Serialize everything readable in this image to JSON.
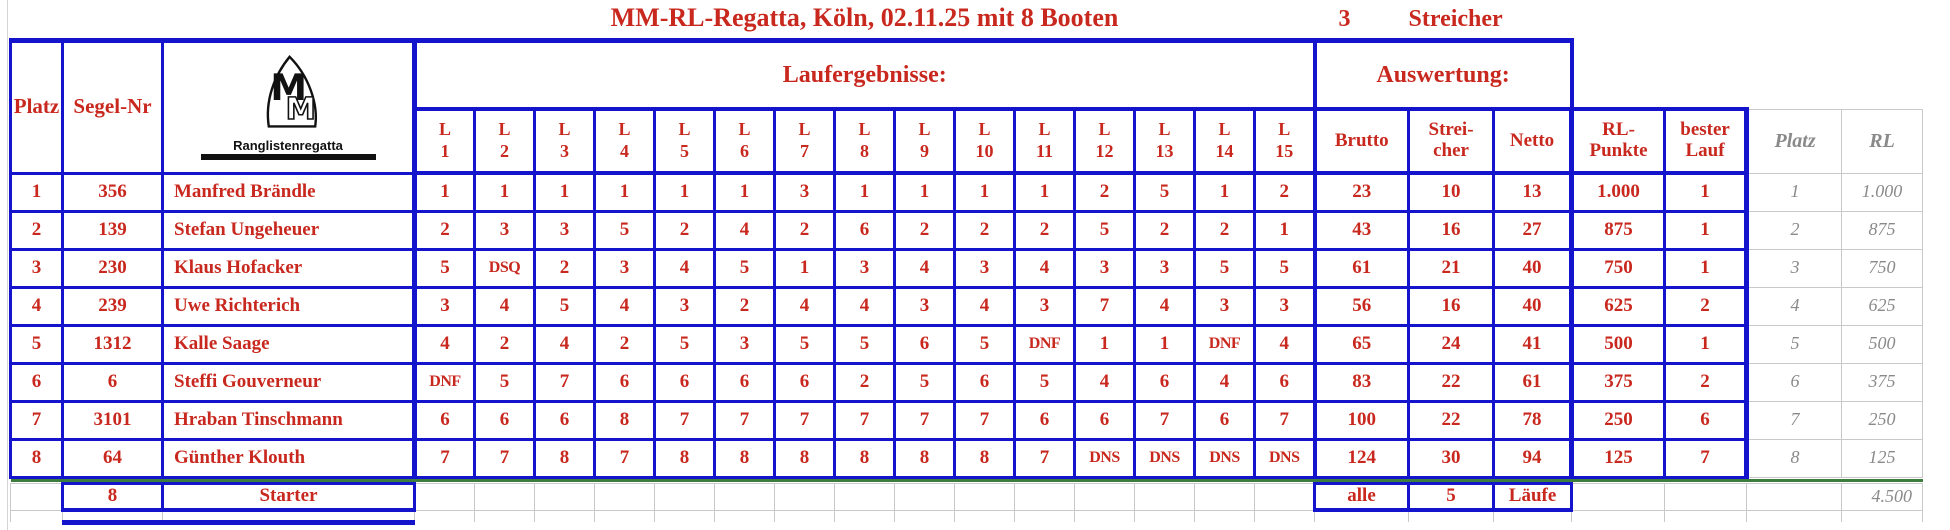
{
  "title": "MM-RL-Regatta, Köln, 02.11.25 mit 8 Booten",
  "streicher_box": {
    "count": "3",
    "label": "Streicher"
  },
  "sections": {
    "laufergebnisse": "Laufergebnisse:",
    "auswertung": "Auswertung:"
  },
  "logo": {
    "m1": "M",
    "m2": "M",
    "caption": "Ranglistenregatta"
  },
  "columns": {
    "platz": "Platz",
    "segel_nr": "Segel-Nr",
    "lauf_prefix": "L",
    "lauf_numbers": [
      "1",
      "2",
      "3",
      "4",
      "5",
      "6",
      "7",
      "8",
      "9",
      "10",
      "11",
      "12",
      "13",
      "14",
      "15"
    ],
    "brutto": "Brutto",
    "streicher_l1": "Strei-",
    "streicher_l2": "cher",
    "netto": "Netto",
    "rl_punkte_l1": "RL-",
    "rl_punkte_l2": "Punkte",
    "bester_lauf_l1": "bester",
    "bester_lauf_l2": "Lauf",
    "platz_gray": "Platz",
    "rl_gray": "RL"
  },
  "rows": [
    {
      "platz": "1",
      "segel_nr": "356",
      "name": "Manfred Brändle",
      "laeufe": [
        "1",
        "1",
        "1",
        "1",
        "1",
        "1",
        "3",
        "1",
        "1",
        "1",
        "1",
        "2",
        "5",
        "1",
        "2"
      ],
      "brutto": "23",
      "streicher": "10",
      "netto": "13",
      "rl_punkte": "1.000",
      "bester_lauf": "1",
      "platz_gray": "1",
      "rl_gray": "1.000"
    },
    {
      "platz": "2",
      "segel_nr": "139",
      "name": "Stefan Ungeheuer",
      "laeufe": [
        "2",
        "3",
        "3",
        "5",
        "2",
        "4",
        "2",
        "6",
        "2",
        "2",
        "2",
        "5",
        "2",
        "2",
        "1"
      ],
      "brutto": "43",
      "streicher": "16",
      "netto": "27",
      "rl_punkte": "875",
      "bester_lauf": "1",
      "platz_gray": "2",
      "rl_gray": "875"
    },
    {
      "platz": "3",
      "segel_nr": "230",
      "name": "Klaus Hofacker",
      "laeufe": [
        "5",
        "DSQ",
        "2",
        "3",
        "4",
        "5",
        "1",
        "3",
        "4",
        "3",
        "4",
        "3",
        "3",
        "5",
        "5"
      ],
      "brutto": "61",
      "streicher": "21",
      "netto": "40",
      "rl_punkte": "750",
      "bester_lauf": "1",
      "platz_gray": "3",
      "rl_gray": "750"
    },
    {
      "platz": "4",
      "segel_nr": "239",
      "name": "Uwe Richterich",
      "laeufe": [
        "3",
        "4",
        "5",
        "4",
        "3",
        "2",
        "4",
        "4",
        "3",
        "4",
        "3",
        "7",
        "4",
        "3",
        "3"
      ],
      "brutto": "56",
      "streicher": "16",
      "netto": "40",
      "rl_punkte": "625",
      "bester_lauf": "2",
      "platz_gray": "4",
      "rl_gray": "625"
    },
    {
      "platz": "5",
      "segel_nr": "1312",
      "name": "Kalle Saage",
      "laeufe": [
        "4",
        "2",
        "4",
        "2",
        "5",
        "3",
        "5",
        "5",
        "6",
        "5",
        "DNF",
        "1",
        "1",
        "DNF",
        "4"
      ],
      "brutto": "65",
      "streicher": "24",
      "netto": "41",
      "rl_punkte": "500",
      "bester_lauf": "1",
      "platz_gray": "5",
      "rl_gray": "500"
    },
    {
      "platz": "6",
      "segel_nr": "6",
      "name": "Steffi Gouverneur",
      "laeufe": [
        "DNF",
        "5",
        "7",
        "6",
        "6",
        "6",
        "6",
        "2",
        "5",
        "6",
        "5",
        "4",
        "6",
        "4",
        "6"
      ],
      "brutto": "83",
      "streicher": "22",
      "netto": "61",
      "rl_punkte": "375",
      "bester_lauf": "2",
      "platz_gray": "6",
      "rl_gray": "375"
    },
    {
      "platz": "7",
      "segel_nr": "3101",
      "name": "Hraban Tinschmann",
      "laeufe": [
        "6",
        "6",
        "6",
        "8",
        "7",
        "7",
        "7",
        "7",
        "7",
        "7",
        "6",
        "6",
        "7",
        "6",
        "7"
      ],
      "brutto": "100",
      "streicher": "22",
      "netto": "78",
      "rl_punkte": "250",
      "bester_lauf": "6",
      "platz_gray": "7",
      "rl_gray": "250"
    },
    {
      "platz": "8",
      "segel_nr": "64",
      "name": "Günther Klouth",
      "laeufe": [
        "7",
        "7",
        "8",
        "7",
        "8",
        "8",
        "8",
        "8",
        "8",
        "8",
        "7",
        "DNS",
        "DNS",
        "DNS",
        "DNS"
      ],
      "brutto": "124",
      "streicher": "30",
      "netto": "94",
      "rl_punkte": "125",
      "bester_lauf": "7",
      "platz_gray": "8",
      "rl_gray": "125"
    }
  ],
  "footer": {
    "starter_count": "8",
    "starter_label": "Starter",
    "alle_label": "alle",
    "streicher_count": "5",
    "laeufe_label": "Läufe",
    "rl_total": "4.500"
  },
  "colors": {
    "border_blue": "#1414CC",
    "text_red": "#C8281E",
    "separator_green": "#3B7D3C",
    "text_gray": "#8A8A8A",
    "gridline_gray": "#C9C9C9"
  }
}
